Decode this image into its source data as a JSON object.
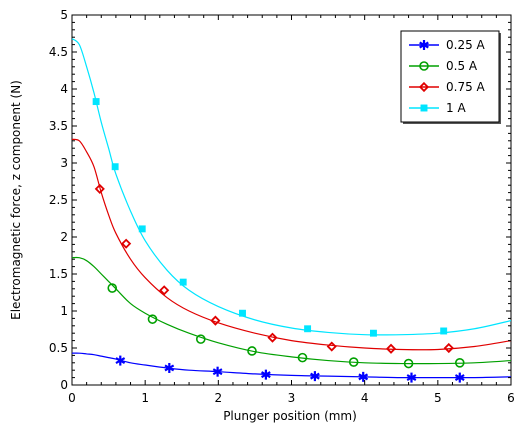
{
  "chart_data": {
    "type": "line",
    "title": "",
    "xlabel": "Plunger position (mm)",
    "ylabel": "Electromagnetic force, z component (N)",
    "xlim": [
      0,
      6
    ],
    "ylim": [
      0,
      5
    ],
    "xticks": [
      "0",
      "1",
      "2",
      "3",
      "4",
      "5",
      "6"
    ],
    "yticks": [
      "0",
      "0.5",
      "1",
      "1.5",
      "2",
      "2.5",
      "3",
      "3.5",
      "4",
      "4.5",
      "5"
    ],
    "x_tick_values": [
      0,
      1,
      2,
      3,
      4,
      5,
      6
    ],
    "y_tick_values": [
      0,
      0.5,
      1,
      1.5,
      2,
      2.5,
      3,
      3.5,
      4,
      4.5,
      5
    ],
    "grid": false,
    "legend_position": "top-right",
    "series": [
      {
        "name": "0.25 A",
        "color": "#0000ff",
        "marker": "asterisk",
        "x": [
          0,
          0.1,
          0.2,
          0.3,
          0.4,
          0.5,
          0.6,
          0.8,
          1.0,
          1.3,
          1.6,
          2.0,
          2.5,
          3.0,
          3.5,
          4.0,
          4.5,
          5.0,
          5.5,
          6.0
        ],
        "y": [
          0.43,
          0.43,
          0.42,
          0.41,
          0.39,
          0.37,
          0.35,
          0.3,
          0.27,
          0.23,
          0.2,
          0.18,
          0.15,
          0.13,
          0.12,
          0.11,
          0.1,
          0.1,
          0.1,
          0.11
        ],
        "markers_x": [
          0.66,
          1.33,
          1.99,
          2.65,
          3.32,
          3.98,
          4.64,
          5.3
        ],
        "markers_y": [
          0.33,
          0.23,
          0.18,
          0.14,
          0.12,
          0.11,
          0.1,
          0.1
        ]
      },
      {
        "name": "0.5 A",
        "color": "#00a000",
        "marker": "circle",
        "x": [
          0,
          0.1,
          0.2,
          0.3,
          0.4,
          0.5,
          0.6,
          0.8,
          1.0,
          1.3,
          1.6,
          2.0,
          2.5,
          3.0,
          3.5,
          4.0,
          4.5,
          5.0,
          5.5,
          6.0
        ],
        "y": [
          1.72,
          1.72,
          1.68,
          1.6,
          1.5,
          1.4,
          1.3,
          1.1,
          0.97,
          0.82,
          0.7,
          0.57,
          0.45,
          0.38,
          0.33,
          0.3,
          0.29,
          0.29,
          0.3,
          0.33
        ],
        "markers_x": [
          0.55,
          1.1,
          1.76,
          2.46,
          3.15,
          3.85,
          4.6,
          5.3
        ],
        "markers_y": [
          1.31,
          0.89,
          0.62,
          0.46,
          0.37,
          0.31,
          0.29,
          0.3
        ]
      },
      {
        "name": "0.75 A",
        "color": "#e00000",
        "marker": "diamond",
        "x": [
          0,
          0.1,
          0.2,
          0.3,
          0.4,
          0.5,
          0.6,
          0.8,
          1.0,
          1.3,
          1.6,
          2.0,
          2.5,
          3.0,
          3.5,
          4.0,
          4.5,
          5.0,
          5.5,
          6.0
        ],
        "y": [
          3.32,
          3.3,
          3.15,
          2.95,
          2.6,
          2.3,
          2.05,
          1.7,
          1.45,
          1.18,
          1.0,
          0.84,
          0.7,
          0.6,
          0.54,
          0.5,
          0.48,
          0.48,
          0.52,
          0.6
        ],
        "markers_x": [
          0.38,
          0.74,
          1.26,
          1.96,
          2.74,
          3.55,
          4.36,
          5.15
        ],
        "markers_y": [
          2.65,
          1.91,
          1.28,
          0.87,
          0.64,
          0.52,
          0.49,
          0.5
        ]
      },
      {
        "name": "1 A",
        "color": "#00e5ff",
        "marker": "square",
        "x": [
          0,
          0.1,
          0.2,
          0.3,
          0.4,
          0.5,
          0.6,
          0.8,
          1.0,
          1.3,
          1.6,
          2.0,
          2.5,
          3.0,
          3.5,
          4.0,
          4.5,
          5.0,
          5.5,
          6.0
        ],
        "y": [
          4.68,
          4.6,
          4.3,
          3.95,
          3.55,
          3.2,
          2.85,
          2.35,
          1.95,
          1.55,
          1.28,
          1.06,
          0.88,
          0.77,
          0.71,
          0.68,
          0.68,
          0.7,
          0.76,
          0.87
        ],
        "markers_x": [
          0.33,
          0.59,
          0.96,
          1.52,
          2.33,
          3.22,
          4.12,
          5.08
        ],
        "markers_y": [
          3.83,
          2.95,
          2.11,
          1.39,
          0.97,
          0.76,
          0.7,
          0.73
        ]
      }
    ]
  }
}
